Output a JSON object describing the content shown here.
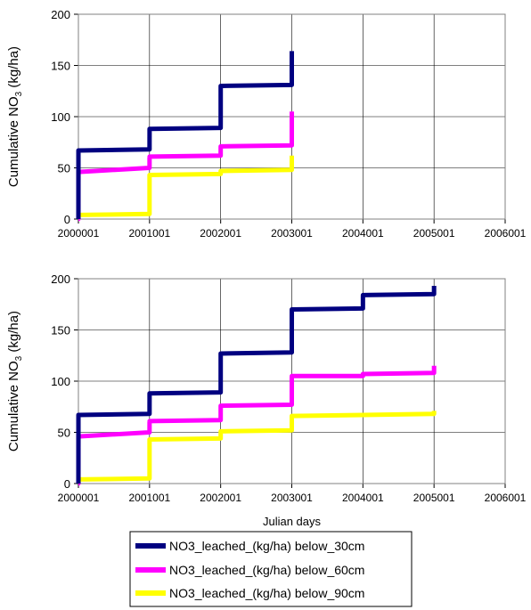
{
  "colors": {
    "below_30cm": "#000080",
    "below_60cm": "#ff00ff",
    "below_90cm": "#ffff00"
  },
  "chart_data": [
    {
      "type": "line",
      "xlabel": "",
      "ylabel": "Cumulative NO3 (kg/ha)",
      "ylabel_main": "Cumulative NO",
      "ylabel_sub": "3",
      "ylabel_tail": " (kg/ha)",
      "xlim": [
        2000001,
        2006001
      ],
      "ylim": [
        0,
        200
      ],
      "x_ticks": [
        "2000001",
        "2001001",
        "2002001",
        "2003001",
        "2004001",
        "2005001",
        "2006001"
      ],
      "y_ticks": [
        "0",
        "50",
        "100",
        "150",
        "200"
      ],
      "grid": "major x and y",
      "series": [
        {
          "name": "NO3_leached_(kg/ha) below_30cm",
          "x": [
            2000001.05,
            2000001.15,
            2000001.25,
            2000001.32,
            2000001.42,
            2000001.55,
            2000001.75,
            2000001.95,
            2001001.08,
            2001001.2,
            2001001.4,
            2001001.45,
            2001001.95,
            2002001.05,
            2002001.25,
            2002001.35,
            2002001.42,
            2002001.5,
            2002001.75,
            2003001.0,
            2003001.05,
            2003001.15,
            2003001.2
          ],
          "y": [
            0,
            15,
            35,
            40,
            60,
            67,
            67,
            67,
            68,
            78,
            82,
            88,
            88,
            89,
            94,
            95,
            95,
            128,
            130,
            131,
            150,
            155,
            164
          ]
        },
        {
          "name": "NO3_leached_(kg/ha) below_60cm",
          "x": [
            2000001.05,
            2000001.2,
            2000001.3,
            2000001.33,
            2000001.38,
            2000001.42,
            2000001.6,
            2000001.95,
            2001001.02,
            2001001.1,
            2001001.3,
            2001001.45,
            2001001.95,
            2002001.05,
            2002001.25,
            2002001.35,
            2002001.5,
            2002001.8,
            2003001.0,
            2003001.1,
            2003001.2
          ],
          "y": [
            0,
            0,
            2,
            10,
            42,
            44,
            45,
            46,
            50,
            56,
            60,
            60,
            61,
            62,
            68,
            68,
            70,
            71,
            72,
            97,
            105
          ]
        },
        {
          "name": "NO3_leached_(kg/ha) below_90cm",
          "x": [
            2000001.05,
            2000001.3,
            2000001.6,
            2000001.95,
            2001001.0,
            2001001.02,
            2001001.05,
            2001001.1,
            2001001.2,
            2001001.4,
            2001001.95,
            2002001.1,
            2002001.35,
            2002001.5,
            2002001.9,
            2003001.0,
            2003001.1,
            2003001.2
          ],
          "y": [
            0,
            2,
            3,
            4,
            5,
            20,
            35,
            42,
            43,
            43,
            43,
            44,
            45,
            46,
            47,
            48,
            56,
            62
          ]
        }
      ]
    },
    {
      "type": "line",
      "xlabel": "Julian days",
      "ylabel": "Cumulative NO3 (kg/ha)",
      "ylabel_main": "Cumulative NO",
      "ylabel_sub": "3",
      "ylabel_tail": " (kg/ha)",
      "xlim": [
        2000001,
        2006001
      ],
      "ylim": [
        0,
        200
      ],
      "x_ticks": [
        "2000001",
        "2001001",
        "2002001",
        "2003001",
        "2004001",
        "2005001",
        "2006001"
      ],
      "y_ticks": [
        "0",
        "50",
        "100",
        "150",
        "200"
      ],
      "grid": "major x and y",
      "series": [
        {
          "name": "NO3_leached_(kg/ha) below_30cm",
          "x": [
            2000001.05,
            2000001.15,
            2000001.25,
            2000001.32,
            2000001.42,
            2000001.55,
            2000001.75,
            2000001.95,
            2001001.08,
            2001001.2,
            2001001.4,
            2001001.45,
            2001001.95,
            2002001.05,
            2002001.25,
            2002001.35,
            2002001.42,
            2002001.5,
            2002001.75,
            2003001.0,
            2003001.05,
            2003001.2,
            2003001.3,
            2003001.5,
            2003001.9,
            2004001.2,
            2004001.3,
            2004001.5,
            2004001.9,
            2005001.0,
            2005001.15,
            2005001.25
          ],
          "y": [
            0,
            15,
            35,
            40,
            60,
            67,
            67,
            67,
            68,
            78,
            82,
            88,
            88,
            89,
            94,
            95,
            95,
            126,
            127,
            128,
            150,
            160,
            170,
            170,
            170,
            171,
            176,
            183,
            184,
            185,
            190,
            193
          ]
        },
        {
          "name": "NO3_leached_(kg/ha) below_60cm",
          "x": [
            2000001.05,
            2000001.2,
            2000001.3,
            2000001.33,
            2000001.38,
            2000001.42,
            2000001.6,
            2000001.95,
            2001001.02,
            2001001.1,
            2001001.3,
            2001001.45,
            2001001.95,
            2002001.05,
            2002001.25,
            2002001.35,
            2002001.5,
            2002001.8,
            2003001.0,
            2003001.1,
            2003001.2,
            2003001.5,
            2003001.95,
            2004001.3,
            2004001.5,
            2004001.95,
            2005001.0,
            2005001.15,
            2005001.25
          ],
          "y": [
            0,
            0,
            2,
            10,
            42,
            44,
            45,
            46,
            50,
            56,
            60,
            60,
            61,
            62,
            68,
            68,
            75,
            76,
            77,
            100,
            104,
            104,
            105,
            105,
            106,
            107,
            108,
            112,
            115
          ]
        },
        {
          "name": "NO3_leached_(kg/ha) below_90cm",
          "x": [
            2000001.05,
            2000001.3,
            2000001.6,
            2000001.95,
            2001001.0,
            2001001.02,
            2001001.05,
            2001001.1,
            2001001.2,
            2001001.4,
            2001001.95,
            2002001.1,
            2002001.35,
            2002001.5,
            2002001.9,
            2003001.0,
            2003001.1,
            2003001.5,
            2003001.95,
            2004001.3,
            2004001.95,
            2005001.0,
            2005001.2,
            2005001.25
          ],
          "y": [
            0,
            2,
            3,
            4,
            5,
            20,
            35,
            42,
            43,
            43,
            43,
            44,
            45,
            50,
            51,
            52,
            65,
            66,
            66,
            67,
            67,
            68,
            70,
            71
          ]
        }
      ]
    }
  ],
  "legend": {
    "position": "bottom-center",
    "entries": [
      "NO3_leached_(kg/ha) below_30cm",
      "NO3_leached_(kg/ha) below_60cm",
      "NO3_leached_(kg/ha) below_90cm"
    ]
  }
}
